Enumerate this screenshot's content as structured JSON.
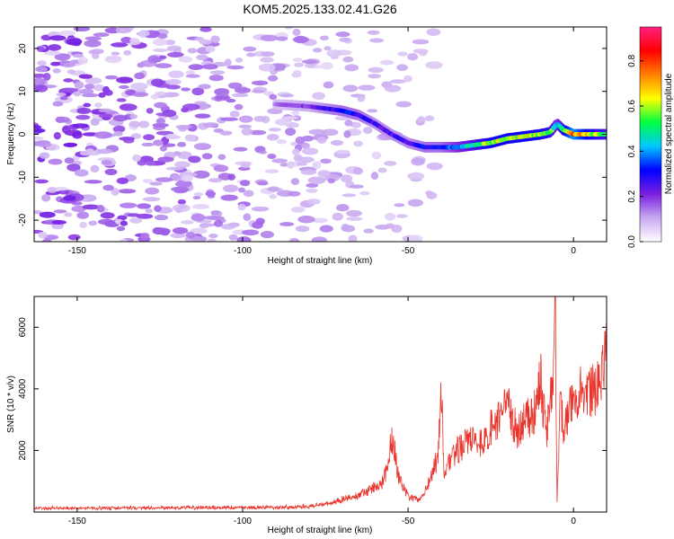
{
  "title": "KOM5.2025.133.02.41.G26",
  "chart_data": [
    {
      "type": "heatmap",
      "xlabel": "Height of straight line (km)",
      "ylabel": "Frequency (Hz)",
      "xlim": [
        -163,
        10
      ],
      "ylim": [
        -25,
        25
      ],
      "xticks": [
        -150,
        -100,
        -50,
        0
      ],
      "yticks": [
        20,
        10,
        0,
        -10,
        -20
      ],
      "colorbar": {
        "label": "Normalized spectral amplitude",
        "range": [
          0,
          0.95
        ],
        "ticks": [
          0.0,
          0.2,
          0.4,
          0.6,
          0.8
        ],
        "colors": [
          "#ffffff",
          "#c8a8f0",
          "#7a1fe0",
          "#0000ff",
          "#00c8ff",
          "#00ff40",
          "#ffff00",
          "#ff8000",
          "#ff0000",
          "#ff2080"
        ]
      },
      "ridge": {
        "x": [
          -90,
          -80,
          -75,
          -70,
          -65,
          -60,
          -55,
          -50,
          -45,
          -40,
          -35,
          -30,
          -25,
          -20,
          -15,
          -10,
          -7,
          -5,
          -3,
          0,
          5,
          10
        ],
        "freq": [
          7,
          6.5,
          6,
          5.5,
          4.5,
          2.5,
          0,
          -2,
          -3,
          -3,
          -3,
          -2.5,
          -2,
          -1,
          -0.5,
          0,
          0.5,
          2.5,
          1,
          0,
          0,
          0
        ],
        "amplitude": [
          0.15,
          0.2,
          0.25,
          0.3,
          0.3,
          0.25,
          0.25,
          0.25,
          0.3,
          0.3,
          0.4,
          0.5,
          0.6,
          0.6,
          0.6,
          0.6,
          0.55,
          0.4,
          0.55,
          0.8,
          0.6,
          0.5
        ]
      }
    },
    {
      "type": "line",
      "xlabel": "Height of straight line (km)",
      "ylabel": "SNR (10 * v/v)",
      "xlim": [
        -163,
        10
      ],
      "ylim": [
        0,
        7000
      ],
      "xticks": [
        -150,
        -100,
        -50,
        0
      ],
      "yticks": [
        2000,
        4000,
        6000
      ],
      "color": "#e8322a",
      "series": [
        {
          "x": [
            -163,
            -140,
            -120,
            -100,
            -90,
            -80,
            -75,
            -70,
            -65,
            -62,
            -58,
            -56,
            -55,
            -54,
            -53,
            -50,
            -47,
            -45,
            -43,
            -41,
            -40,
            -39,
            -38,
            -35,
            -30,
            -27,
            -25,
            -22,
            -20,
            -17,
            -15,
            -12,
            -10,
            -9,
            -8,
            -7,
            -6,
            -5.5,
            -5,
            -4,
            -3,
            -2,
            0,
            2,
            5,
            8,
            10
          ],
          "y": [
            120,
            130,
            140,
            150,
            150,
            180,
            250,
            400,
            550,
            700,
            900,
            1500,
            2400,
            2000,
            1200,
            500,
            400,
            600,
            1200,
            1800,
            4200,
            1000,
            1500,
            2000,
            2500,
            2200,
            2700,
            3000,
            3500,
            2600,
            2900,
            3200,
            4500,
            3300,
            2500,
            3800,
            4200,
            7000,
            300,
            3500,
            2800,
            3000,
            3700,
            4000,
            3800,
            4300,
            5100
          ]
        }
      ]
    }
  ]
}
